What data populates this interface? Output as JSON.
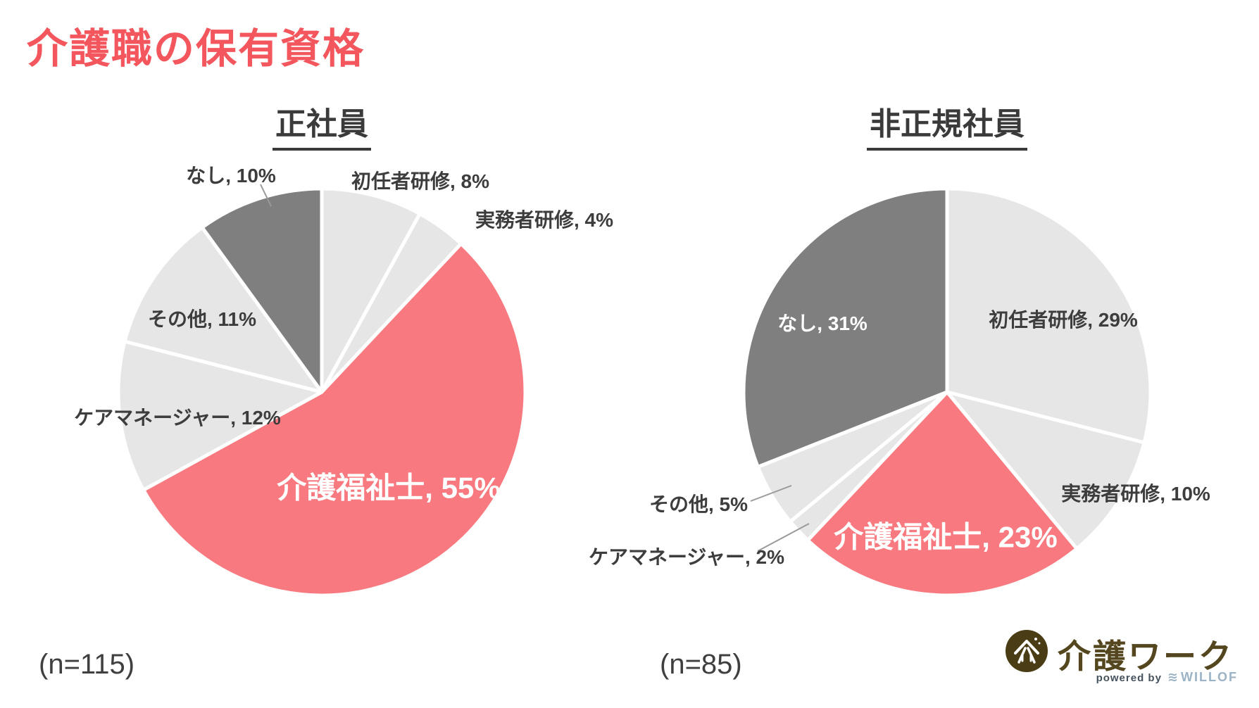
{
  "page_title": "介護職の保有資格",
  "colors": {
    "title_red": "#f4565e",
    "pie_red": "#f8797f",
    "pie_light_gray": "#e6e6e6",
    "pie_dark_gray": "#7f7f7f",
    "label_dark": "#3d3d3d",
    "label_white": "#ffffff",
    "logo_brown": "#54461e",
    "willof_blue": "#9cb3c5"
  },
  "chart_data": [
    {
      "type": "pie",
      "title": "正社員",
      "n": 115,
      "n_label": "(n=115)",
      "unit": "%",
      "categories": [
        "初任者研修",
        "実務者研修",
        "介護福祉士",
        "ケアマネージャー",
        "その他",
        "なし"
      ],
      "values": [
        8,
        4,
        55,
        12,
        11,
        10
      ],
      "labels": [
        "初任者研修, 8%",
        "実務者研修, 4%",
        "介護福祉士, 55%",
        "ケアマネージャー, 12%",
        "その他, 11%",
        "なし, 10%"
      ],
      "slice_colors": [
        "#e6e6e6",
        "#e6e6e6",
        "#f8797f",
        "#e6e6e6",
        "#e6e6e6",
        "#7f7f7f"
      ],
      "legend": "off",
      "start_angle_deg": 0,
      "direction": "clockwise"
    },
    {
      "type": "pie",
      "title": "非正規社員",
      "n": 85,
      "n_label": "(n=85)",
      "unit": "%",
      "categories": [
        "初任者研修",
        "実務者研修",
        "介護福祉士",
        "ケアマネージャー",
        "その他",
        "なし"
      ],
      "values": [
        29,
        10,
        23,
        2,
        5,
        31
      ],
      "labels": [
        "初任者研修, 29%",
        "実務者研修, 10%",
        "介護福祉士, 23%",
        "ケアマネージャー, 2%",
        "その他, 5%",
        "なし, 31%"
      ],
      "slice_colors": [
        "#e6e6e6",
        "#e6e6e6",
        "#f8797f",
        "#e6e6e6",
        "#e6e6e6",
        "#7f7f7f"
      ],
      "legend": "off",
      "start_angle_deg": 0,
      "direction": "clockwise"
    }
  ],
  "logo": {
    "brand": "介護ワーク",
    "powered_by": "powered by",
    "willof": "WILLOF"
  }
}
